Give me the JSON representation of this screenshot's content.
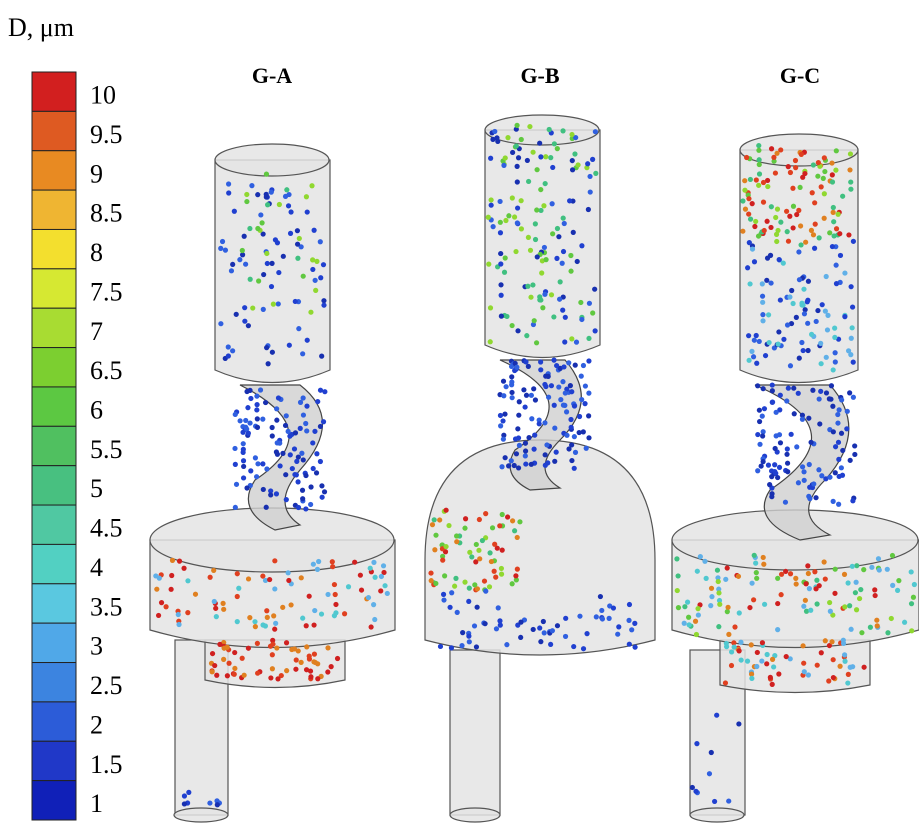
{
  "colorbar": {
    "title": "D, μm",
    "ticks": [
      10,
      9.5,
      9,
      8.5,
      8,
      7.5,
      7,
      6.5,
      6,
      5.5,
      5,
      4.5,
      4,
      3.5,
      3,
      2.5,
      2,
      1.5,
      1
    ],
    "colors": [
      "#d21f1f",
      "#de5a22",
      "#e88a22",
      "#efb532",
      "#f3df2e",
      "#d6e832",
      "#a8dc32",
      "#7ccf30",
      "#5cc842",
      "#50c060",
      "#48c080",
      "#50c8a2",
      "#52d0c2",
      "#5ac8e0",
      "#50a8e8",
      "#3c84e0",
      "#2c5cd8",
      "#2038c8",
      "#1020b8"
    ]
  },
  "panels": [
    {
      "label": "G-A"
    },
    {
      "label": "G-B"
    },
    {
      "label": "G-C"
    }
  ]
}
